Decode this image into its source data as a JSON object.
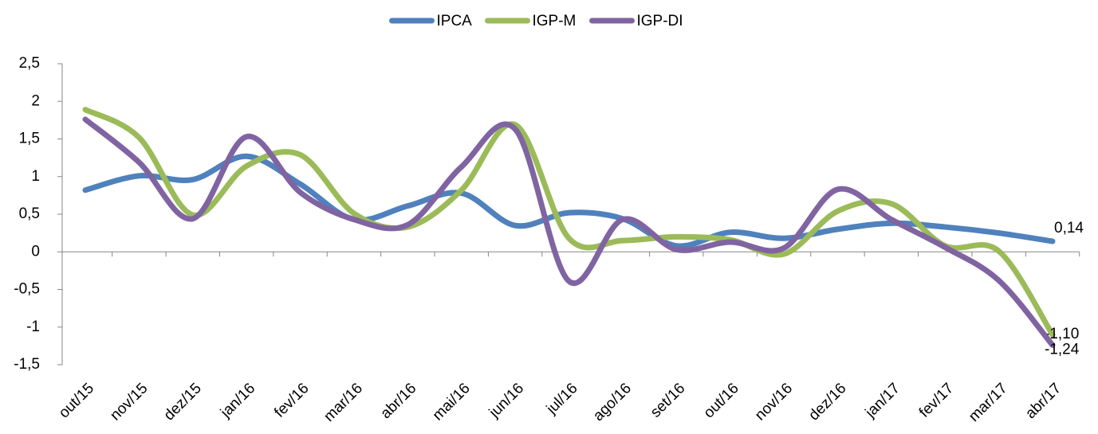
{
  "chart_data": {
    "type": "line",
    "categories": [
      "out/15",
      "nov/15",
      "dez/15",
      "jan/16",
      "fev/16",
      "mar/16",
      "abr/16",
      "mai/16",
      "jun/16",
      "jul/16",
      "ago/16",
      "set/16",
      "out/16",
      "nov/16",
      "dez/16",
      "jan/17",
      "fev/17",
      "mar/17",
      "abr/17"
    ],
    "series": [
      {
        "name": "IPCA",
        "color": "#4f81bd",
        "values": [
          0.82,
          1.01,
          0.96,
          1.27,
          0.9,
          0.43,
          0.61,
          0.78,
          0.35,
          0.52,
          0.44,
          0.08,
          0.26,
          0.18,
          0.3,
          0.38,
          0.33,
          0.25,
          0.14
        ],
        "value_labels": [
          null,
          null,
          null,
          null,
          null,
          null,
          null,
          null,
          null,
          null,
          null,
          null,
          null,
          null,
          null,
          null,
          null,
          null,
          "0,14"
        ]
      },
      {
        "name": "IGP-M",
        "color": "#9bbb59",
        "values": [
          1.89,
          1.52,
          0.49,
          1.14,
          1.29,
          0.51,
          0.33,
          0.82,
          1.69,
          0.18,
          0.15,
          0.2,
          0.16,
          -0.03,
          0.54,
          0.64,
          0.08,
          0.01,
          -1.1
        ],
        "value_labels": [
          null,
          null,
          null,
          null,
          null,
          null,
          null,
          null,
          null,
          null,
          null,
          null,
          null,
          null,
          null,
          null,
          null,
          null,
          "-1,10"
        ]
      },
      {
        "name": "IGP-DI",
        "color": "#8064a2",
        "values": [
          1.76,
          1.19,
          0.44,
          1.53,
          0.79,
          0.43,
          0.36,
          1.13,
          1.63,
          -0.39,
          0.43,
          0.03,
          0.13,
          0.05,
          0.83,
          0.43,
          0.06,
          -0.38,
          -1.24
        ],
        "value_labels": [
          null,
          null,
          null,
          null,
          null,
          null,
          null,
          null,
          null,
          null,
          null,
          null,
          null,
          null,
          null,
          null,
          null,
          null,
          "-1,24"
        ]
      }
    ],
    "ylim": [
      -1.5,
      2.5
    ],
    "yticks": [
      {
        "value": -1.5,
        "label": "-1,5"
      },
      -1,
      {
        "value": -0.5,
        "label": "-0,5"
      },
      0,
      {
        "value": 0.5,
        "label": "0,5"
      },
      1,
      {
        "value": 1.5,
        "label": "1,5"
      },
      2,
      {
        "value": 2.5,
        "label": "2,5"
      }
    ],
    "legend": "top",
    "smooth": true
  }
}
